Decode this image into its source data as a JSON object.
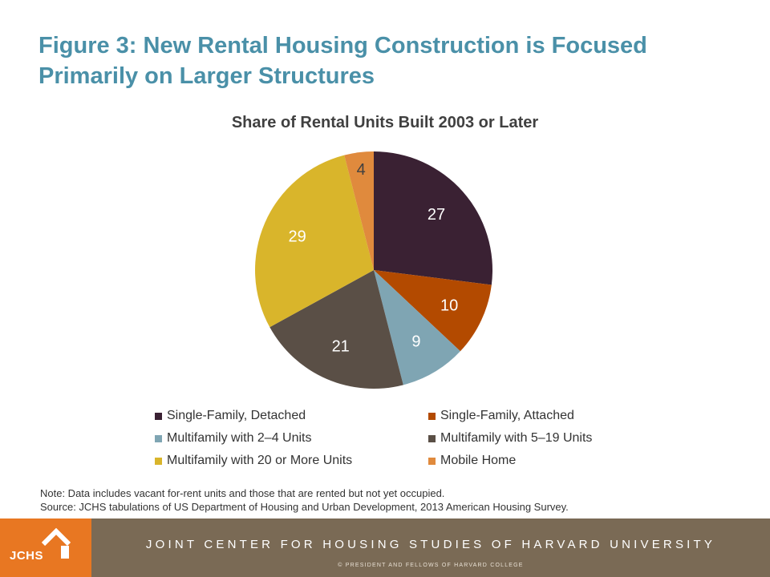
{
  "slide": {
    "title": "Figure 3: New Rental Housing Construction is Focused Primarily on Larger Structures"
  },
  "chart_data": {
    "type": "pie",
    "title": "Share of Rental Units Built 2003 or Later",
    "categories": [
      "Single-Family, Detached",
      "Single-Family, Attached",
      "Multifamily with 2–4 Units",
      "Multifamily with 5–19 Units",
      "Multifamily with 20 or More Units",
      "Mobile Home"
    ],
    "values": [
      27,
      10,
      9,
      21,
      29,
      4
    ],
    "colors": [
      "#3a2133",
      "#b34a00",
      "#7fa5b3",
      "#5a4f46",
      "#d9b52b",
      "#e08a3d"
    ],
    "label_colors": [
      "#ffffff",
      "#ffffff",
      "#ffffff",
      "#ffffff",
      "#ffffff",
      "#404040"
    ],
    "start_angle_deg": 0,
    "direction": "clockwise",
    "legend_position": "bottom"
  },
  "notes": {
    "note": "Note: Data includes vacant for-rent units and those that are rented but not yet occupied.",
    "source": "Source: JCHS tabulations of US Department of Housing and Urban Development, 2013 American Housing Survey."
  },
  "footer": {
    "logo_text": "JCHS",
    "organization": "JOINT CENTER FOR HOUSING STUDIES OF HARVARD UNIVERSITY",
    "copyright": "© PRESIDENT AND FELLOWS OF HARVARD COLLEGE",
    "logo_color": "#e87722",
    "band_color": "#7a6a55"
  },
  "icons": {
    "logo": "house-icon"
  }
}
